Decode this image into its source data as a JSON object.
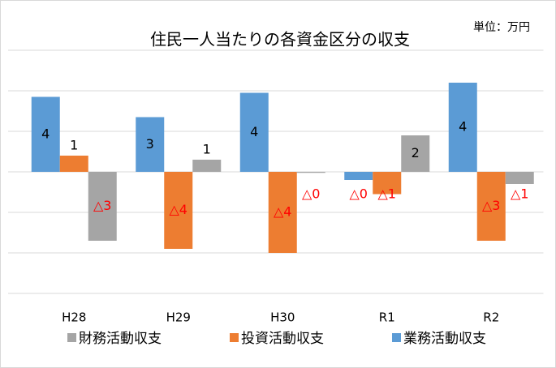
{
  "chart_data": {
    "type": "bar",
    "title": "住民一人当たりの各資金区分の収支",
    "unit": "単位：万円",
    "categories": [
      "H28",
      "H29",
      "H30",
      "R1",
      "R2"
    ],
    "series": [
      {
        "name": "業務活動収支",
        "color": "#5b9bd5",
        "values": [
          3.7,
          2.7,
          3.9,
          -0.4,
          4.4
        ],
        "value_labels": [
          "4",
          "3",
          "4",
          "△0",
          "4"
        ]
      },
      {
        "name": "投資活動収支",
        "color": "#ed7d31",
        "values": [
          0.8,
          -3.8,
          -4.0,
          -1.1,
          -3.4
        ],
        "value_labels": [
          "1",
          "△4",
          "△4",
          "△1",
          "△3"
        ]
      },
      {
        "name": "財務活動収支",
        "color": "#a5a5a5",
        "values": [
          -3.4,
          0.6,
          -0.05,
          1.8,
          -0.6
        ],
        "value_labels": [
          "△3",
          "1",
          "△0",
          "2",
          "△1"
        ]
      }
    ],
    "legend_order": [
      2,
      1,
      0
    ],
    "ylim": [
      -6,
      6
    ],
    "yticks": [
      -6,
      -4,
      -2,
      0,
      2,
      4,
      6
    ],
    "grid": true
  }
}
